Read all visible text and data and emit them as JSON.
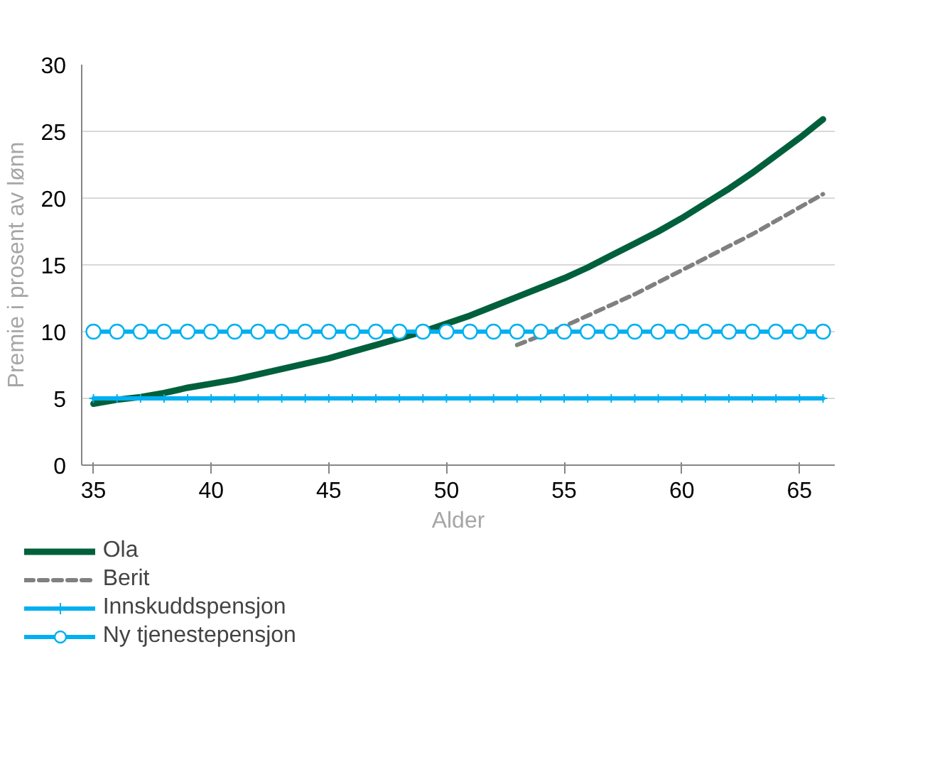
{
  "chart_data": {
    "type": "line",
    "xlabel": "Alder",
    "ylabel": "Premie i prosent av lønn",
    "x": [
      35,
      36,
      37,
      38,
      39,
      40,
      41,
      42,
      43,
      44,
      45,
      46,
      47,
      48,
      49,
      50,
      51,
      52,
      53,
      54,
      55,
      56,
      57,
      58,
      59,
      60,
      61,
      62,
      63,
      64,
      65,
      66
    ],
    "xlim": [
      34.5,
      66.5
    ],
    "xticks": [
      35,
      40,
      45,
      50,
      55,
      60,
      65
    ],
    "ylim": [
      0,
      30
    ],
    "yticks": [
      0,
      5,
      10,
      15,
      20,
      25,
      30
    ],
    "grid": "y",
    "legend": "bottom",
    "series": [
      {
        "name": "Ola",
        "color": "#00603c",
        "line_style": "solid",
        "marker": "none",
        "values": [
          4.6,
          4.9,
          5.1,
          5.4,
          5.8,
          6.1,
          6.4,
          6.8,
          7.2,
          7.6,
          8.0,
          8.5,
          9.0,
          9.5,
          10.0,
          10.6,
          11.2,
          11.9,
          12.6,
          13.3,
          14.0,
          14.8,
          15.7,
          16.6,
          17.5,
          18.5,
          19.6,
          20.7,
          21.9,
          23.2,
          24.5,
          25.9
        ]
      },
      {
        "name": "Berit",
        "color": "#808080",
        "line_style": "dashed",
        "marker": "none",
        "values": [
          null,
          null,
          null,
          null,
          null,
          null,
          null,
          null,
          null,
          null,
          null,
          null,
          null,
          null,
          null,
          null,
          null,
          null,
          9.0,
          9.7,
          10.4,
          11.2,
          12.0,
          12.8,
          13.7,
          14.6,
          15.5,
          16.4,
          17.3,
          18.3,
          19.3,
          20.3
        ]
      },
      {
        "name": "Innskuddspensjon",
        "color": "#00b0f0",
        "line_style": "solid",
        "marker": "cross",
        "values": [
          5,
          5,
          5,
          5,
          5,
          5,
          5,
          5,
          5,
          5,
          5,
          5,
          5,
          5,
          5,
          5,
          5,
          5,
          5,
          5,
          5,
          5,
          5,
          5,
          5,
          5,
          5,
          5,
          5,
          5,
          5,
          5
        ]
      },
      {
        "name": "Ny tjenestepensjon",
        "color": "#00b0f0",
        "line_style": "solid",
        "marker": "circle",
        "values": [
          10,
          10,
          10,
          10,
          10,
          10,
          10,
          10,
          10,
          10,
          10,
          10,
          10,
          10,
          10,
          10,
          10,
          10,
          10,
          10,
          10,
          10,
          10,
          10,
          10,
          10,
          10,
          10,
          10,
          10,
          10,
          10
        ]
      }
    ]
  }
}
